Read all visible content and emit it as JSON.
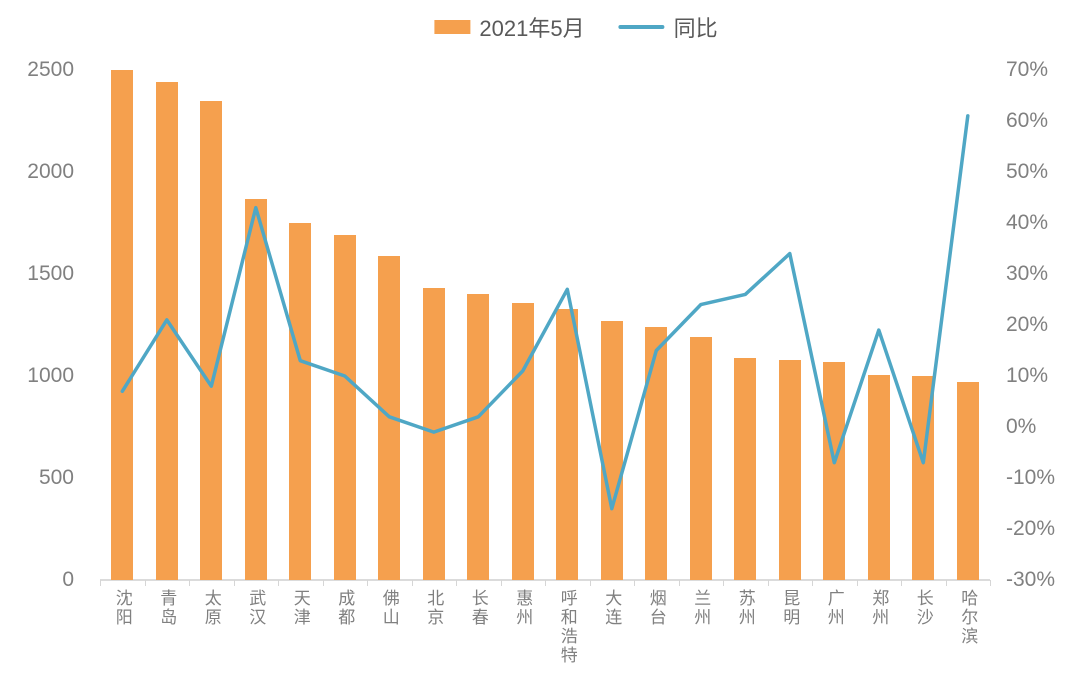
{
  "legend": {
    "bar_label": "2021年5月",
    "line_label": "同比"
  },
  "colors": {
    "bar": "#F5A04E",
    "line": "#4FA7C5",
    "axis_text": "#808080",
    "legend_text": "#595959",
    "axis_line": "#DBDBDB"
  },
  "chart_data": {
    "type": "bar",
    "subtype": "bar-line-combo",
    "title": "",
    "grid": false,
    "legend_position": "top-center",
    "categories": [
      "沈阳",
      "青岛",
      "太原",
      "武汉",
      "天津",
      "成都",
      "佛山",
      "北京",
      "长春",
      "惠州",
      "呼和浩特",
      "大连",
      "烟台",
      "兰州",
      "苏州",
      "昆明",
      "广州",
      "郑州",
      "长沙",
      "哈尔滨"
    ],
    "series": [
      {
        "name": "2021年5月",
        "type": "bar",
        "axis": "left",
        "color": "#F5A04E",
        "values": [
          2500,
          2440,
          2350,
          1870,
          1750,
          1690,
          1590,
          1430,
          1400,
          1360,
          1330,
          1270,
          1240,
          1190,
          1090,
          1080,
          1070,
          1005,
          1000,
          970
        ]
      },
      {
        "name": "同比",
        "type": "line",
        "axis": "right",
        "unit": "%",
        "color": "#4FA7C5",
        "values": [
          7,
          21,
          8,
          43,
          13,
          10,
          2,
          -1,
          2,
          11,
          27,
          -16,
          15,
          24,
          26,
          34,
          -7,
          19,
          -7,
          61
        ]
      }
    ],
    "left_axis": {
      "min": 0,
      "max": 2500,
      "step": 500,
      "tick_labels": [
        "0",
        "500",
        "1000",
        "1500",
        "2000",
        "2500"
      ]
    },
    "right_axis": {
      "min": -30,
      "max": 70,
      "step": 10,
      "tick_labels": [
        "-30%",
        "-20%",
        "-10%",
        "0%",
        "10%",
        "20%",
        "30%",
        "40%",
        "50%",
        "60%",
        "70%"
      ]
    }
  }
}
